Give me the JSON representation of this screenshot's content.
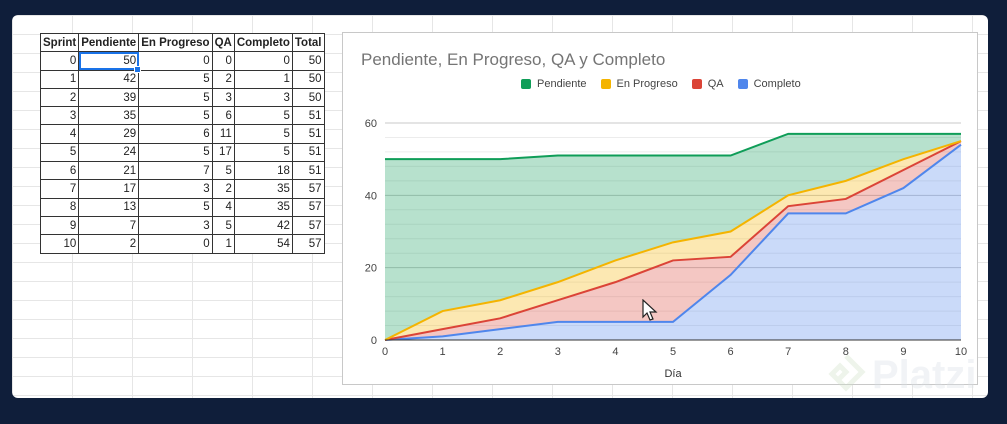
{
  "table": {
    "headers": [
      "Sprint",
      "Pendiente",
      "En Progreso",
      "QA",
      "Completo",
      "Total"
    ],
    "rows": [
      [
        0,
        50,
        0,
        0,
        0,
        50
      ],
      [
        1,
        42,
        5,
        2,
        1,
        50
      ],
      [
        2,
        39,
        5,
        3,
        3,
        50
      ],
      [
        3,
        35,
        5,
        6,
        5,
        51
      ],
      [
        4,
        29,
        6,
        11,
        5,
        51
      ],
      [
        5,
        24,
        5,
        17,
        5,
        51
      ],
      [
        6,
        21,
        7,
        5,
        18,
        51
      ],
      [
        7,
        17,
        3,
        2,
        35,
        57
      ],
      [
        8,
        13,
        5,
        4,
        35,
        57
      ],
      [
        9,
        7,
        3,
        5,
        42,
        57
      ],
      [
        10,
        2,
        0,
        1,
        54,
        57
      ]
    ]
  },
  "chart_data": {
    "type": "area",
    "stacked": true,
    "title": "Pendiente, En Progreso, QA y Completo",
    "xlabel": "Día",
    "ylabel": "",
    "x": [
      0,
      1,
      2,
      3,
      4,
      5,
      6,
      7,
      8,
      9,
      10
    ],
    "ylim": [
      0,
      60
    ],
    "yticks": [
      0,
      20,
      40,
      60
    ],
    "grid": true,
    "legend_position": "top",
    "series": [
      {
        "name": "Completo",
        "color": "#4f86ec",
        "values": [
          0,
          1,
          3,
          5,
          5,
          5,
          18,
          35,
          35,
          42,
          54
        ]
      },
      {
        "name": "QA",
        "color": "#db4437",
        "values": [
          0,
          2,
          3,
          6,
          11,
          17,
          5,
          2,
          4,
          5,
          1
        ]
      },
      {
        "name": "En Progreso",
        "color": "#f4b400",
        "values": [
          0,
          5,
          5,
          5,
          6,
          5,
          7,
          3,
          5,
          3,
          0
        ]
      },
      {
        "name": "Pendiente",
        "color": "#0f9d58",
        "values": [
          50,
          42,
          39,
          35,
          29,
          24,
          21,
          17,
          13,
          7,
          2
        ]
      }
    ],
    "legend_order": [
      "Pendiente",
      "En Progreso",
      "QA",
      "Completo"
    ]
  },
  "watermark": {
    "text": "Platzi"
  },
  "icons": {
    "cursor": "mouse-pointer-icon",
    "logo": "platzi-logo-icon"
  }
}
